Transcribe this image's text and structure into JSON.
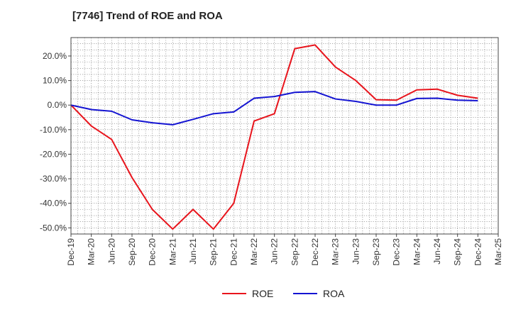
{
  "chart_data": {
    "type": "line",
    "title": "[7746]  Trend of ROE and ROA",
    "xlabel": "",
    "ylabel": "",
    "categories": [
      "Dec-19",
      "Mar-20",
      "Jun-20",
      "Sep-20",
      "Dec-20",
      "Mar-21",
      "Jun-21",
      "Sep-21",
      "Dec-21",
      "Mar-22",
      "Jun-22",
      "Sep-22",
      "Dec-22",
      "Mar-23",
      "Jun-23",
      "Sep-23",
      "Dec-23",
      "Mar-24",
      "Jun-24",
      "Sep-24",
      "Dec-24",
      "Mar-25"
    ],
    "ylim": [
      -52.5,
      27.5
    ],
    "yticks": [
      20,
      10,
      0,
      -10,
      -20,
      -30,
      -40,
      -50
    ],
    "ytick_labels": [
      "20.0%",
      "10.0%",
      "0.0%",
      "-10.0%",
      "-20.0%",
      "-30.0%",
      "-40.0%",
      "-50.0%"
    ],
    "grid": true,
    "legend_position": "bottom-center",
    "series": [
      {
        "name": "ROE",
        "color": "#e8141c",
        "values": [
          0.0,
          -8.5,
          -14.0,
          -29.5,
          -42.5,
          -50.5,
          -42.5,
          -50.5,
          -40.0,
          -6.5,
          -3.5,
          23.0,
          24.5,
          15.5,
          10.0,
          2.2,
          2.0,
          6.2,
          6.5,
          4.0,
          2.8,
          null
        ]
      },
      {
        "name": "ROA",
        "color": "#1414d2",
        "values": [
          0.0,
          -1.8,
          -2.5,
          -6.0,
          -7.2,
          -8.0,
          -5.8,
          -3.5,
          -2.8,
          2.8,
          3.5,
          5.2,
          5.5,
          2.5,
          1.5,
          0.0,
          0.0,
          2.7,
          2.8,
          2.0,
          1.8,
          null
        ]
      }
    ]
  }
}
